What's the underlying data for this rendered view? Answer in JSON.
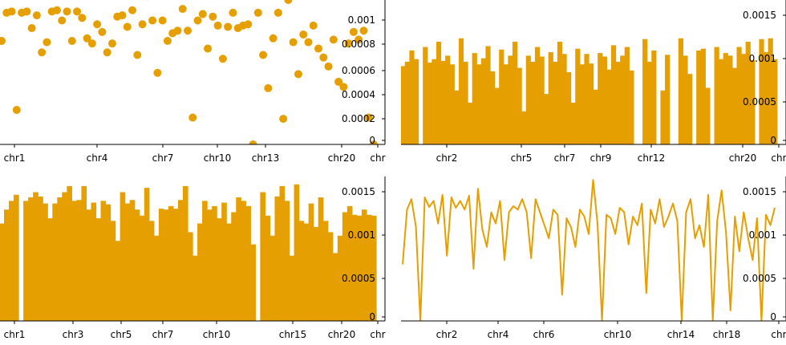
{
  "colors": {
    "accent": "#e69f00",
    "axis": "#000000"
  },
  "chart_data": [
    {
      "type": "scatter",
      "x_ticks": [
        "chr1",
        "chr4",
        "chr7",
        "chr10",
        "chr13",
        "chr20",
        "chr"
      ],
      "y_ticks": [
        "0.001",
        "0.0008",
        "0.0006",
        "0.0004",
        "0.0002",
        "0"
      ],
      "ylim": [
        0,
        0.00113
      ],
      "values": [
        0.00081,
        0.00103,
        0.00104,
        0.00027,
        0.00103,
        0.00104,
        0.00091,
        0.00101,
        0.00072,
        0.0008,
        0.00104,
        0.00105,
        0.00097,
        0.00104,
        0.00081,
        0.00104,
        0.00099,
        0.00083,
        0.00079,
        0.00094,
        0.00088,
        0.00072,
        0.00079,
        0.001,
        0.00101,
        0.00092,
        0.00105,
        0.0007,
        0.00094,
        0.00116,
        0.00097,
        0.00056,
        0.00097,
        0.00081,
        0.00087,
        0.00089,
        0.00106,
        0.00089,
        0.00021,
        0.00097,
        0.00102,
        0.00075,
        0.001,
        0.00093,
        0.00067,
        0.00092,
        0.00103,
        0.00091,
        0.00093,
        0.00094,
        0.0,
        0.00103,
        0.0007,
        0.00044,
        0.00083,
        0.00103,
        0.0002,
        0.00113,
        0.0008,
        0.00055,
        0.00086,
        0.0008,
        0.00093,
        0.00075,
        0.00068,
        0.00061,
        0.00082,
        0.00049,
        0.00045,
        0.00079,
        0.00088,
        0.00082,
        0.00089,
        0.00021,
        0.0
      ]
    },
    {
      "type": "area",
      "x_ticks": [
        "chr2",
        "chr5",
        "chr7",
        "chr9",
        "chr12",
        "chr20",
        "chr"
      ],
      "y_ticks": [
        "0.0015",
        "0.001",
        "0.0005",
        "0"
      ],
      "ylim": [
        0,
        0.00166
      ],
      "values": [
        0.0009,
        0.00095,
        0.00108,
        0.00098,
        0.0,
        0.00112,
        0.00094,
        0.00098,
        0.00118,
        0.00096,
        0.00102,
        0.00092,
        0.00062,
        0.00122,
        0.00095,
        0.00048,
        0.00105,
        0.00092,
        0.00099,
        0.00113,
        0.00084,
        0.00065,
        0.00109,
        0.00092,
        0.00102,
        0.00118,
        0.00088,
        0.00038,
        0.00102,
        0.00095,
        0.00112,
        0.00101,
        0.00058,
        0.00106,
        0.00095,
        0.00118,
        0.00104,
        0.00083,
        0.00048,
        0.0011,
        0.00092,
        0.00104,
        0.00093,
        0.00063,
        0.00105,
        0.00101,
        0.00086,
        0.00114,
        0.00095,
        0.00102,
        0.00112,
        0.00085,
        0.0,
        0.0,
        0.00121,
        0.00095,
        0.00108,
        0.0,
        0.00062,
        0.00103,
        0.0,
        0.0,
        0.00122,
        0.00102,
        0.00081,
        0.0,
        0.00108,
        0.0011,
        0.00065,
        0.0,
        0.00112,
        0.00098,
        0.00105,
        0.00102,
        0.00088,
        0.00112,
        0.00104,
        0.00118,
        0.00097,
        0.0,
        0.00121,
        0.00106,
        0.00122,
        0.00098
      ]
    },
    {
      "type": "bar",
      "x_ticks": [
        "chr1",
        "chr3",
        "chr5",
        "chr7",
        "chr10",
        "chr15",
        "chr20",
        "chr"
      ],
      "y_ticks": [
        "0.0015",
        "0.001",
        "0.0005",
        "0"
      ],
      "ylim": [
        0,
        0.00166
      ],
      "values": [
        0.00112,
        0.00128,
        0.00138,
        0.00145,
        0.0,
        0.00138,
        0.00142,
        0.00148,
        0.00143,
        0.00135,
        0.00118,
        0.00135,
        0.00142,
        0.00148,
        0.00155,
        0.00138,
        0.00139,
        0.00155,
        0.00128,
        0.00136,
        0.00118,
        0.00138,
        0.00134,
        0.00115,
        0.00092,
        0.00148,
        0.00135,
        0.00139,
        0.00128,
        0.00121,
        0.00153,
        0.00115,
        0.00098,
        0.00129,
        0.00128,
        0.00132,
        0.00129,
        0.00139,
        0.00155,
        0.00102,
        0.00075,
        0.00112,
        0.00138,
        0.00128,
        0.00132,
        0.00118,
        0.00136,
        0.00112,
        0.00125,
        0.00142,
        0.00138,
        0.00132,
        0.00088,
        0.0,
        0.00148,
        0.00121,
        0.00098,
        0.00143,
        0.00155,
        0.00138,
        0.00075,
        0.00157,
        0.00115,
        0.00112,
        0.00135,
        0.00108,
        0.00142,
        0.00115,
        0.00102,
        0.00078,
        0.00098,
        0.00125,
        0.00132,
        0.00122,
        0.00121,
        0.00128,
        0.00122,
        0.00121
      ]
    },
    {
      "type": "line",
      "x_ticks": [
        "chr2",
        "chr4",
        "chr6",
        "chr10",
        "chr14",
        "chr18",
        "chr"
      ],
      "y_ticks": [
        "0.0015",
        "0.001",
        "0.0005",
        "0"
      ],
      "ylim": [
        0,
        0.00166
      ],
      "values": [
        0.00065,
        0.00128,
        0.0014,
        0.00108,
        0.0,
        0.00142,
        0.00131,
        0.00138,
        0.00112,
        0.00145,
        0.00075,
        0.00142,
        0.0013,
        0.00138,
        0.00128,
        0.00144,
        0.0006,
        0.00152,
        0.00105,
        0.00085,
        0.00125,
        0.00112,
        0.00138,
        0.0007,
        0.00125,
        0.00132,
        0.00128,
        0.0014,
        0.00125,
        0.00072,
        0.0014,
        0.00125,
        0.0011,
        0.00095,
        0.00128,
        0.00122,
        0.0003,
        0.00118,
        0.00108,
        0.00085,
        0.00128,
        0.0012,
        0.001,
        0.00162,
        0.00112,
        0.0,
        0.00122,
        0.00118,
        0.001,
        0.0013,
        0.00125,
        0.00088,
        0.0012,
        0.0011,
        0.00135,
        0.00032,
        0.00128,
        0.00112,
        0.0014,
        0.00108,
        0.0012,
        0.00135,
        0.00115,
        0.0,
        0.00125,
        0.0014,
        0.00095,
        0.0011,
        0.00085,
        0.00145,
        0.0,
        0.00115,
        0.0015,
        0.00102,
        0.00012,
        0.0012,
        0.0008,
        0.00125,
        0.00095,
        0.0007,
        0.00118,
        0.0,
        0.00122,
        0.0011,
        0.0013
      ]
    }
  ]
}
